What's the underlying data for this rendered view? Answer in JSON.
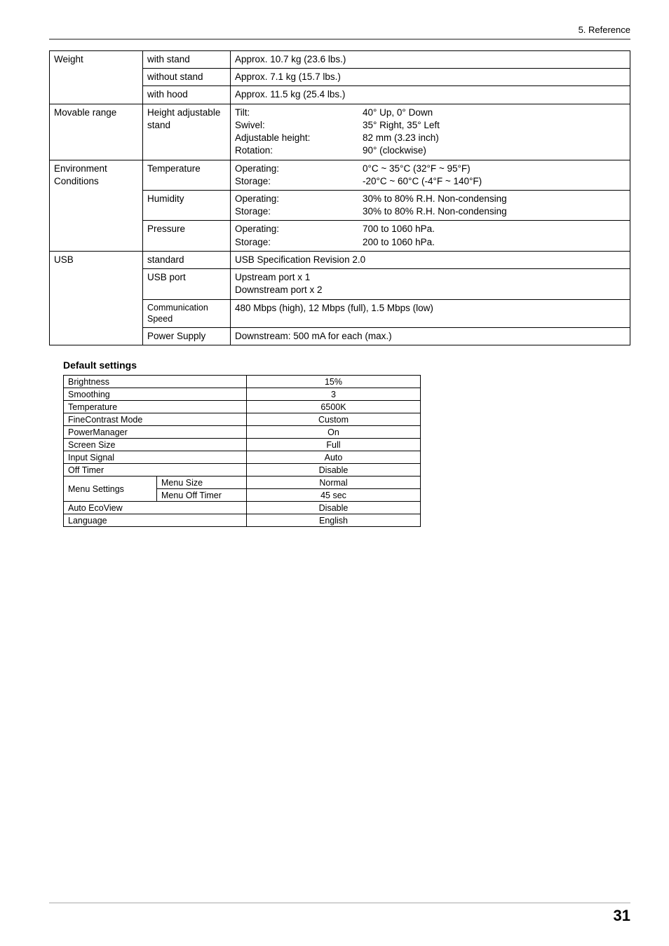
{
  "header": {
    "section": "5. Reference"
  },
  "spec_table": {
    "rows": [
      {
        "cat": "Weight",
        "sub": "with stand",
        "val_full": "Approx. 10.7 kg (23.6 lbs.)"
      },
      {
        "cat_cont": true,
        "sub": "without stand",
        "val_full": "Approx. 7.1 kg (15.7 lbs.)"
      },
      {
        "cat_cont": true,
        "sub": "with hood",
        "val_full": "Approx. 11.5 kg (25.4 lbs.)"
      },
      {
        "cat": "Movable range",
        "sub": "Height adjustable stand",
        "col_a": "Tilt:\nSwivel:\nAdjustable height:\nRotation:",
        "col_b": "40° Up, 0° Down\n35° Right, 35° Left\n82 mm (3.23 inch)\n90° (clockwise)"
      },
      {
        "cat": "Environment Conditions",
        "sub": "Temperature",
        "col_a": "Operating:\nStorage:",
        "col_b": "0°C ~ 35°C (32°F ~ 95°F)\n-20°C ~ 60°C (-4°F ~ 140°F)"
      },
      {
        "cat_cont": true,
        "sub": "Humidity",
        "col_a": "Operating:\nStorage:",
        "col_b": "30% to 80% R.H. Non-condensing\n30% to 80% R.H. Non-condensing"
      },
      {
        "cat_cont": true,
        "sub": "Pressure",
        "col_a": "Operating:\nStorage:",
        "col_b": "700 to 1060 hPa.\n200 to 1060 hPa."
      },
      {
        "cat": "USB",
        "sub": "standard",
        "val_full": "USB Specification Revision 2.0"
      },
      {
        "cat_cont": true,
        "sub": "USB port",
        "val_full": "Upstream port x 1\nDownstream port x 2"
      },
      {
        "cat_cont": true,
        "sub": "Communication Speed",
        "val_full": "480 Mbps (high), 12 Mbps (full), 1.5 Mbps (low)"
      },
      {
        "cat_cont": true,
        "sub": "Power Supply",
        "val_full": "Downstream: 500 mA for each (max.)"
      }
    ]
  },
  "defaults": {
    "title": "Default settings",
    "rows": [
      {
        "label": "Brightness",
        "value": "15%"
      },
      {
        "label": "Smoothing",
        "value": "3"
      },
      {
        "label": "Temperature",
        "value": "6500K"
      },
      {
        "label": "FineContrast Mode",
        "value": "Custom"
      },
      {
        "label": "PowerManager",
        "value": "On"
      },
      {
        "label": "Screen Size",
        "value": "Full"
      },
      {
        "label": "Input Signal",
        "value": "Auto"
      },
      {
        "label": "Off Timer",
        "value": "Disable"
      },
      {
        "label": "Menu Settings",
        "sub": "Menu Size",
        "value": "Normal"
      },
      {
        "label_cont": true,
        "sub": "Menu Off Timer",
        "value": "45 sec"
      },
      {
        "label": "Auto EcoView",
        "value": "Disable"
      },
      {
        "label": "Language",
        "value": "English"
      }
    ]
  },
  "footer": {
    "page_number": "31"
  }
}
